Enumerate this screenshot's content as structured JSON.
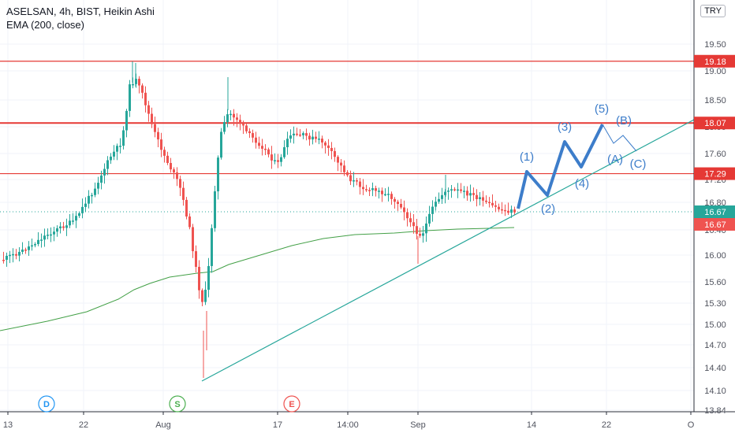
{
  "header": {
    "symbol_line": "ASELSAN, 4h, BIST, Heikin Ashi",
    "indicator_line": "EMA (200, close)",
    "currency": "TRY"
  },
  "chart_data": {
    "type": "candlestick",
    "y_ticks": [
      "19.50",
      "19.00",
      "18.50",
      "18.00",
      "17.60",
      "17.20",
      "16.80",
      "16.40",
      "16.00",
      "15.60",
      "15.30",
      "15.00",
      "14.70",
      "14.40",
      "14.10",
      "13.84"
    ],
    "x_ticks": [
      "13",
      "22",
      "Aug",
      "17",
      "14:00",
      "Sep",
      "14",
      "22",
      "O"
    ],
    "horizontal_levels": [
      {
        "price": 19.18,
        "label": "19.18",
        "color": "#e53935"
      },
      {
        "price": 18.07,
        "label": "18.07",
        "color": "#e53935"
      },
      {
        "price": 17.29,
        "label": "17.29",
        "color": "#e53935"
      }
    ],
    "price_badges": [
      {
        "price": 16.67,
        "label": "16.67",
        "color": "#26a69a"
      },
      {
        "price": 16.67,
        "label": "16.67",
        "color": "#ef5350"
      }
    ],
    "event_markers": [
      {
        "label": "D",
        "color": "#2196f3"
      },
      {
        "label": "S",
        "color": "#4caf50"
      },
      {
        "label": "E",
        "color": "#ef5350"
      }
    ],
    "elliott_labels": [
      "(1)",
      "(2)",
      "(3)",
      "(4)",
      "(5)",
      "(A)",
      "(B)",
      "(C)"
    ],
    "colors": {
      "up": "#26a69a",
      "down": "#ef5350",
      "ema": "#43a047",
      "wave": "#3d7dca",
      "trend": "#26a69a"
    }
  }
}
